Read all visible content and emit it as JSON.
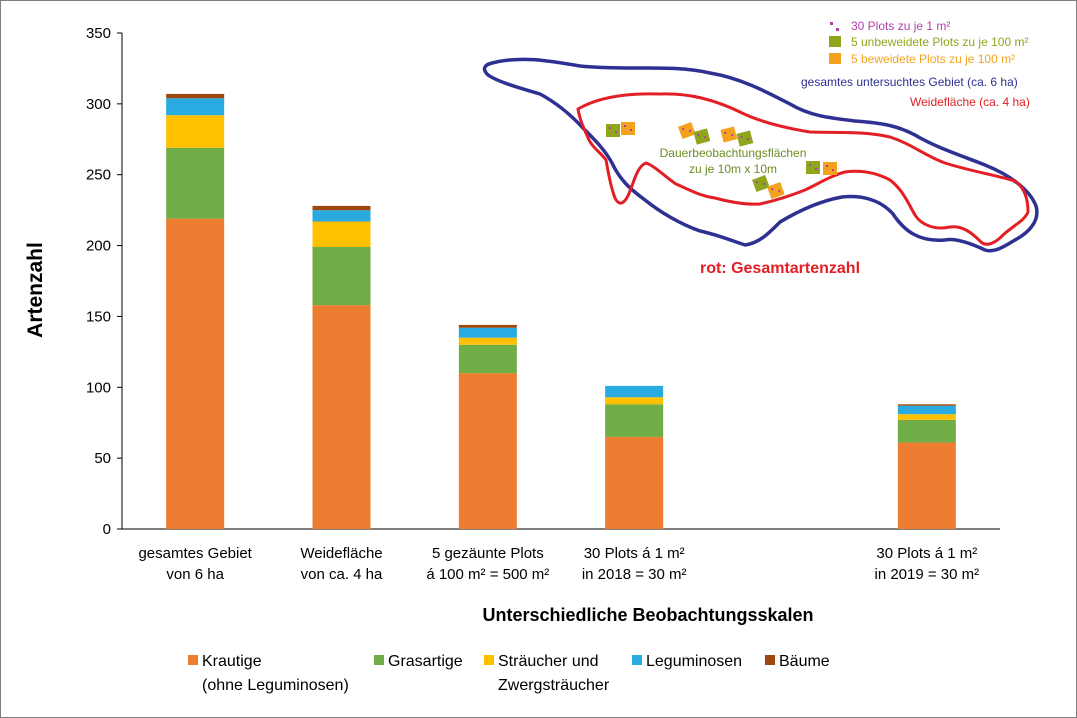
{
  "chart_data": {
    "type": "bar",
    "stacked": true,
    "categories": [
      [
        "gesamtes Gebiet",
        "von 6 ha"
      ],
      [
        "Weidefläche",
        "von ca. 4 ha"
      ],
      [
        "5 gezäunte Plots",
        "á 100 m² = 500 m²"
      ],
      [
        "30 Plots á 1 m²",
        "in 2018 = 30 m²"
      ],
      [
        "",
        ""
      ],
      [
        "30 Plots á 1 m²",
        "in 2019 = 30 m²"
      ]
    ],
    "series": [
      {
        "name": [
          "Krautige",
          "(ohne Leguminosen)"
        ],
        "color": "#ed7d31",
        "values": [
          219,
          158,
          110,
          65,
          null,
          61
        ]
      },
      {
        "name": [
          "Grasartige"
        ],
        "color": "#70ad47",
        "values": [
          50,
          41,
          20,
          23,
          null,
          16
        ]
      },
      {
        "name": [
          "Sträucher und",
          "Zwergsträucher"
        ],
        "color": "#ffc000",
        "values": [
          23,
          18,
          5,
          5,
          null,
          4
        ]
      },
      {
        "name": [
          "Leguminosen"
        ],
        "color": "#29abe2",
        "values": [
          12,
          8,
          7,
          8,
          null,
          6
        ]
      },
      {
        "name": [
          "Bäume"
        ],
        "color": "#9e480e",
        "values": [
          3,
          3,
          2,
          0,
          null,
          1
        ]
      }
    ],
    "xlabel": "Unterschiedliche Beobachtungsskalen",
    "ylabel": "Artenzahl",
    "ylim": [
      0,
      350
    ],
    "yticks": [
      0,
      50,
      100,
      150,
      200,
      250,
      300,
      350
    ],
    "grid": false,
    "legend_position": "bottom"
  },
  "inset": {
    "legend": [
      {
        "label": "30 Plots zu je 1 m²",
        "color": "#b03fa8",
        "marker": "dots"
      },
      {
        "label": "5 unbeweidete Plots zu je 100 m²",
        "color": "#8fa61c",
        "marker": "square"
      },
      {
        "label": "5 beweidete Plots zu je 100 m²",
        "color": "#f4a21d",
        "marker": "square"
      }
    ],
    "area_labels": [
      {
        "label": "gesamtes untersuchtes Gebiet (ca. 6 ha)",
        "color": "#2e3192"
      },
      {
        "label": "Weidefläche (ca. 4 ha)",
        "color": "#e31e24"
      }
    ],
    "plots_label": [
      "Dauerbeobachtungsflächen",
      "zu je 10m x 10m"
    ],
    "plots_label_color": "#6b8e23",
    "note": "rot: Gesamtartenzahl",
    "note_color": "#e31e24",
    "outer_color": "#2e3192",
    "inner_color": "#e31e24"
  }
}
